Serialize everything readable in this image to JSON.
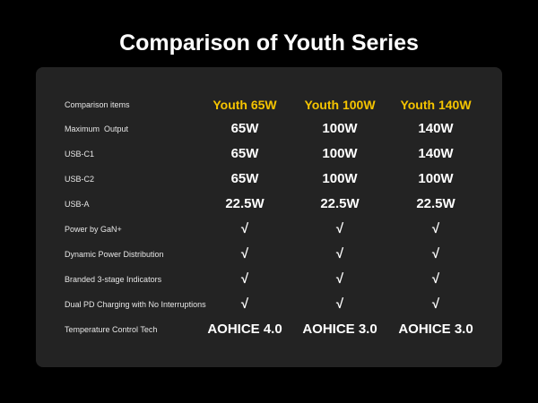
{
  "header": {
    "title": "Comparison of Youth Series"
  },
  "table": {
    "columns": [
      "Comparison items",
      "Youth 65W",
      "Youth 100W",
      "Youth 140W"
    ],
    "rows": [
      [
        "Maximum  Output",
        "65W",
        "100W",
        "140W"
      ],
      [
        "USB-C1",
        "65W",
        "100W",
        "140W"
      ],
      [
        "USB-C2",
        "65W",
        "100W",
        "100W"
      ],
      [
        "USB-A",
        "22.5W",
        "22.5W",
        "22.5W"
      ],
      [
        "Power by GaN+",
        "√",
        "√",
        "√"
      ],
      [
        "Dynamic Power Distribution",
        "√",
        "√",
        "√"
      ],
      [
        "Branded 3-stage Indicators",
        "√",
        "√",
        "√"
      ],
      [
        "Dual PD Charging with No Interruptions",
        "√",
        "√",
        "√"
      ],
      [
        "Temperature Control Tech",
        "AOHICE 4.0",
        "AOHICE 3.0",
        "AOHICE 3.0"
      ]
    ]
  }
}
